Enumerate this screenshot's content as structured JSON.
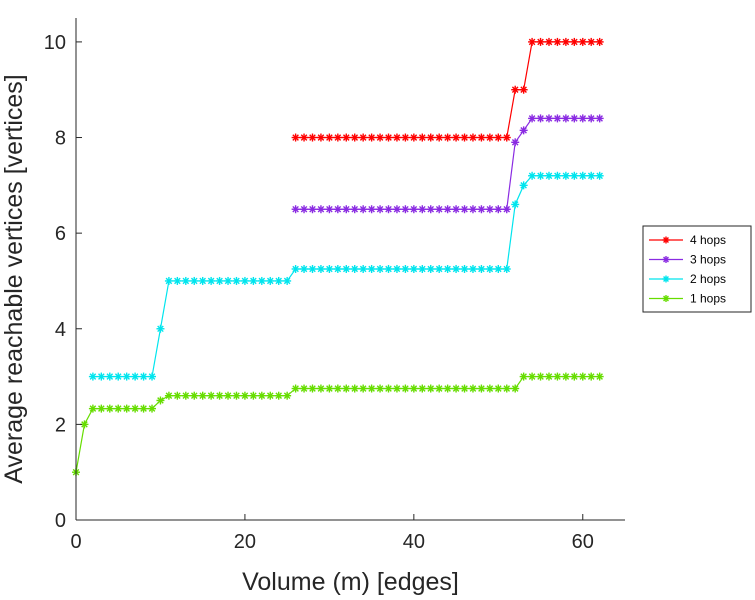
{
  "chart_data": {
    "type": "line",
    "xlabel": "Volume (m) [edges]",
    "ylabel": "Average reachable vertices [vertices]",
    "xlim": [
      0,
      65
    ],
    "ylim": [
      0,
      10.5
    ],
    "xticks": [
      0,
      20,
      40,
      60
    ],
    "yticks": [
      0,
      2,
      4,
      6,
      8,
      10
    ],
    "grid": false,
    "legend_position": "right",
    "marker": "asterisk",
    "series": [
      {
        "name": "4 hops",
        "color": "#ff0000",
        "segments": [
          {
            "x_from": 26,
            "x_to": 51,
            "y": 8
          },
          {
            "x_from": 52,
            "x_to": 53,
            "y": 9
          },
          {
            "x_from": 54,
            "x_to": 62,
            "y": 10
          }
        ]
      },
      {
        "name": "3 hops",
        "color": "#8a2be2",
        "segments": [
          {
            "x_from": 26,
            "x_to": 51,
            "y": 6.5
          },
          {
            "x_from": 52,
            "x_to": 52,
            "y": 7.9
          },
          {
            "x_from": 53,
            "x_to": 53,
            "y": 8.15
          },
          {
            "x_from": 54,
            "x_to": 62,
            "y": 8.4
          }
        ]
      },
      {
        "name": "2 hops",
        "color": "#00e5ee",
        "segments": [
          {
            "x_from": 2,
            "x_to": 9,
            "y": 3
          },
          {
            "x_from": 10,
            "x_to": 10,
            "y": 4
          },
          {
            "x_from": 11,
            "x_to": 25,
            "y": 5
          },
          {
            "x_from": 26,
            "x_to": 51,
            "y": 5.25
          },
          {
            "x_from": 52,
            "x_to": 52,
            "y": 6.6
          },
          {
            "x_from": 53,
            "x_to": 53,
            "y": 7
          },
          {
            "x_from": 54,
            "x_to": 62,
            "y": 7.2
          }
        ]
      },
      {
        "name": "1 hops",
        "color": "#66dd00",
        "segments": [
          {
            "x_from": 0,
            "x_to": 0,
            "y": 1
          },
          {
            "x_from": 1,
            "x_to": 1,
            "y": 2
          },
          {
            "x_from": 2,
            "x_to": 9,
            "y": 2.33
          },
          {
            "x_from": 10,
            "x_to": 10,
            "y": 2.5
          },
          {
            "x_from": 11,
            "x_to": 25,
            "y": 2.6
          },
          {
            "x_from": 26,
            "x_to": 52,
            "y": 2.75
          },
          {
            "x_from": 53,
            "x_to": 62,
            "y": 3
          }
        ]
      }
    ]
  }
}
